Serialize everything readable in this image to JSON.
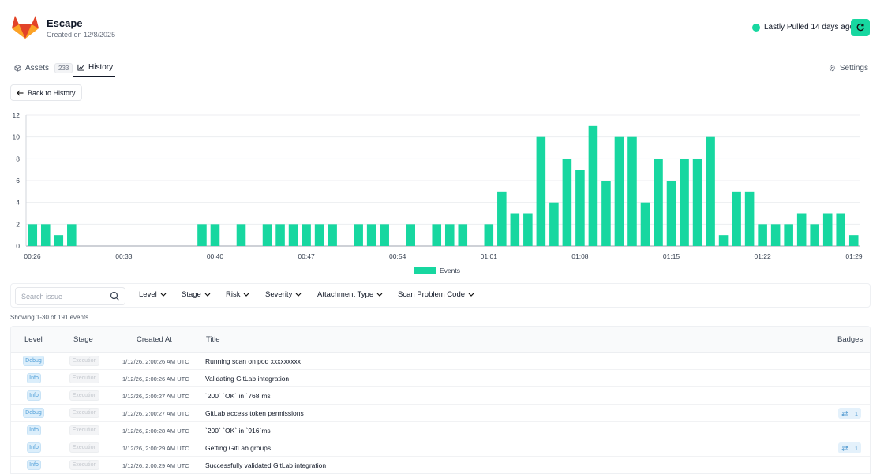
{
  "header": {
    "app_name": "Escape",
    "created": "Created on 12/8/2025",
    "pull_status": "Lastly Pulled 14 days ago"
  },
  "tabs": [
    {
      "label": "Assets",
      "count": "233",
      "icon": "cube-icon"
    },
    {
      "label": "History",
      "icon": "chart-line-icon",
      "active": true
    }
  ],
  "settings_label": "Settings",
  "back_label": "Back to History",
  "colors": {
    "accent": "#17d7a0",
    "debug_blue": "#4f9ed8"
  },
  "chart_data": {
    "type": "bar",
    "y_ticks": [
      "0",
      "2",
      "4",
      "6",
      "8",
      "10",
      "12"
    ],
    "ylim": [
      0,
      12
    ],
    "x_ticks": [
      "00:26",
      "00:33",
      "00:40",
      "00:47",
      "00:54",
      "01:01",
      "01:08",
      "01:15",
      "01:22",
      "01:29"
    ],
    "xlim": [
      "00:26",
      "01:29"
    ],
    "legend": [
      "Events"
    ],
    "grid": true,
    "series": [
      {
        "name": "Events",
        "x": [
          "00:26",
          "00:27",
          "00:28",
          "00:29",
          "00:39",
          "00:40",
          "00:42",
          "00:44",
          "00:45",
          "00:46",
          "00:47",
          "00:48",
          "00:49",
          "00:51",
          "00:52",
          "00:53",
          "00:55",
          "00:57",
          "00:58",
          "00:59",
          "01:01",
          "01:02",
          "01:03",
          "01:04",
          "01:05",
          "01:06",
          "01:07",
          "01:08",
          "01:09",
          "01:10",
          "01:11",
          "01:12",
          "01:13",
          "01:14",
          "01:15",
          "01:16",
          "01:17",
          "01:18",
          "01:19",
          "01:20",
          "01:21",
          "01:22",
          "01:23",
          "01:24",
          "01:25",
          "01:26",
          "01:27",
          "01:28",
          "01:29"
        ],
        "values": [
          2,
          2,
          1,
          2,
          2,
          2,
          2,
          2,
          2,
          2,
          2,
          2,
          2,
          2,
          2,
          2,
          2,
          2,
          2,
          2,
          2,
          5,
          3,
          3,
          10,
          4,
          8,
          7,
          11,
          6,
          10,
          10,
          4,
          8,
          6,
          8,
          8,
          10,
          1,
          5,
          5,
          2,
          2,
          2,
          3,
          2,
          3,
          3,
          1
        ]
      }
    ]
  },
  "filters": {
    "search_placeholder": "Search issue",
    "dropdowns": [
      "Level",
      "Stage",
      "Risk",
      "Severity",
      "Attachment Type",
      "Scan Problem Code"
    ]
  },
  "showing": "Showing 1-30 of 191 events",
  "table": {
    "headers": {
      "level": "Level",
      "stage": "Stage",
      "created": "Created At",
      "title": "Title",
      "badges": "Badges"
    },
    "rows": [
      {
        "level": "Debug",
        "stage": "Execution",
        "created": "1/12/26, 2:00:26 AM UTC",
        "title": "Running scan on pod xxxxxxxxx"
      },
      {
        "level": "Info",
        "stage": "Execution",
        "created": "1/12/26, 2:00:26 AM UTC",
        "title": "Validating GitLab integration"
      },
      {
        "level": "Info",
        "stage": "Execution",
        "created": "1/12/26, 2:00:27 AM UTC",
        "title": "`200` `OK` in `768`ms"
      },
      {
        "level": "Debug",
        "stage": "Execution",
        "created": "1/12/26, 2:00:27 AM UTC",
        "title": "GitLab access token permissions",
        "badge": "1"
      },
      {
        "level": "Info",
        "stage": "Execution",
        "created": "1/12/26, 2:00:28 AM UTC",
        "title": "`200` `OK` in `916`ms"
      },
      {
        "level": "Info",
        "stage": "Execution",
        "created": "1/12/26, 2:00:29 AM UTC",
        "title": "Getting GitLab groups",
        "badge": "1"
      },
      {
        "level": "Info",
        "stage": "Execution",
        "created": "1/12/26, 2:00:29 AM UTC",
        "title": "Successfully validated GitLab integration"
      }
    ]
  }
}
